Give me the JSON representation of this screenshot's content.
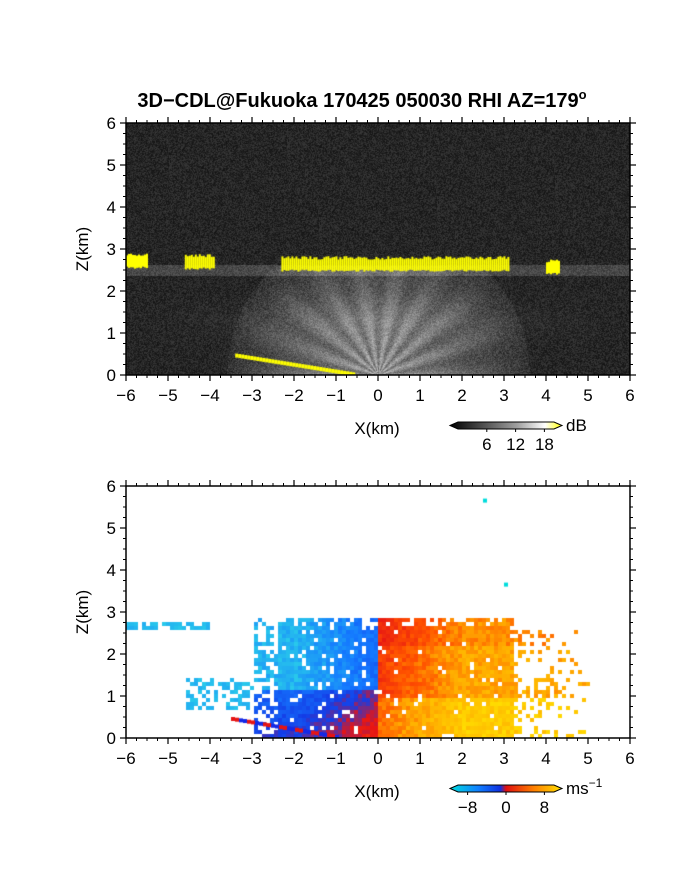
{
  "title": "3D−CDL@Fukuoka 170425 050030 RHI AZ=179",
  "title_deg": "o",
  "chart_data": [
    {
      "type": "heatmap",
      "name": "backscatter",
      "xlabel": "X(km)",
      "ylabel": "Z(km)",
      "xlim": [
        -6,
        6
      ],
      "ylim": [
        0,
        6
      ],
      "xticks": [
        "−6",
        "−5",
        "−4",
        "−3",
        "−2",
        "−1",
        "0",
        "1",
        "2",
        "3",
        "4",
        "5",
        "6"
      ],
      "yticks": [
        "0",
        "1",
        "2",
        "3",
        "4",
        "5",
        "6"
      ],
      "colorbar": {
        "unit": "dB",
        "ticks": [
          "6",
          "12",
          "18"
        ],
        "range": [
          0,
          20
        ]
      },
      "cloud_layers": [
        {
          "x": [
            -6.0,
            -5.5
          ],
          "z": 2.7
        },
        {
          "x": [
            -4.6,
            -3.9
          ],
          "z": 2.68
        },
        {
          "x": [
            -2.3,
            3.1
          ],
          "z": 2.63
        },
        {
          "x": [
            4.0,
            4.3
          ],
          "z": 2.55
        }
      ]
    },
    {
      "type": "heatmap",
      "name": "doppler_velocity",
      "xlabel": "X(km)",
      "ylabel": "Z(km)",
      "xlim": [
        -6,
        6
      ],
      "ylim": [
        0,
        6
      ],
      "xticks": [
        "−6",
        "−5",
        "−4",
        "−3",
        "−2",
        "−1",
        "0",
        "1",
        "2",
        "3",
        "4",
        "5",
        "6"
      ],
      "yticks": [
        "0",
        "1",
        "2",
        "3",
        "4",
        "5",
        "6"
      ],
      "colorbar": {
        "unit": "ms",
        "unit_exp": "−1",
        "ticks": [
          "−8",
          "0",
          "8"
        ],
        "range": [
          -10,
          10
        ]
      }
    }
  ],
  "colors": {
    "background": "#ffffff",
    "cloud": "#ffff00",
    "noise_dark": "#1c1c1c",
    "vel_neg_strong": "#0030ff",
    "vel_neg_weak": "#33ddee",
    "vel_pos_weak": "#ff2a00",
    "vel_pos_strong": "#ffd000"
  }
}
